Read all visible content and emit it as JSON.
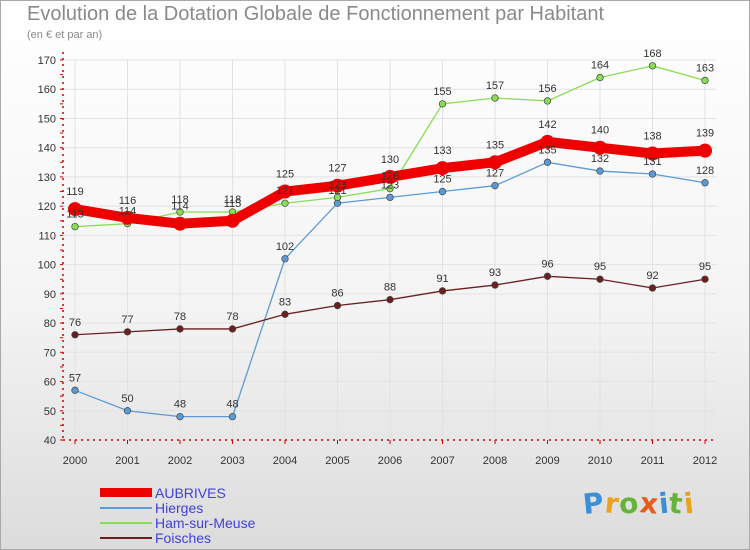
{
  "title": "Evolution de la Dotation Globale de Fonctionnement par Habitant",
  "subtitle": "(en € et par an)",
  "logo": {
    "text": "Proxiti",
    "letter_colors": [
      "#3a8fd6",
      "#e8a21c",
      "#66b33a",
      "#e85c1c",
      "#3a8fd6",
      "#66b33a",
      "#e8a21c"
    ]
  },
  "chart_data": {
    "type": "line",
    "title": "Evolution de la Dotation Globale de Fonctionnement par Habitant",
    "subtitle": "(en € et par an)",
    "xlabel": "",
    "ylabel": "",
    "x": [
      "2000",
      "2001",
      "2002",
      "2003",
      "2004",
      "2005",
      "2006",
      "2007",
      "2008",
      "2009",
      "2010",
      "2011",
      "2012"
    ],
    "ylim": [
      40,
      170
    ],
    "yticks": [
      40,
      50,
      60,
      70,
      80,
      90,
      100,
      110,
      120,
      130,
      140,
      150,
      160,
      170
    ],
    "grid": true,
    "legend_position": "bottom-left",
    "series": [
      {
        "name": "AUBRIVES",
        "color": "#ee0000",
        "emphasis": true,
        "values": [
          119,
          116,
          114,
          115,
          125,
          127,
          130,
          133,
          135,
          142,
          140,
          138,
          139
        ]
      },
      {
        "name": "Hierges",
        "color": "#5b9bd5",
        "emphasis": false,
        "values": [
          57,
          50,
          48,
          48,
          102,
          121,
          123,
          125,
          127,
          135,
          132,
          131,
          128
        ]
      },
      {
        "name": "Ham-sur-Meuse",
        "color": "#88dd55",
        "emphasis": false,
        "values": [
          113,
          114,
          118,
          118,
          121,
          123,
          126,
          155,
          157,
          156,
          164,
          168,
          163
        ]
      },
      {
        "name": "Foisches",
        "color": "#6b1f1f",
        "emphasis": false,
        "values": [
          76,
          77,
          78,
          78,
          83,
          86,
          88,
          91,
          93,
          96,
          95,
          92,
          95
        ]
      }
    ]
  }
}
